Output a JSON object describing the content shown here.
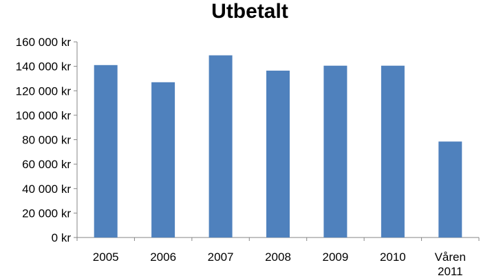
{
  "chart_data": {
    "type": "bar",
    "title": "Utbetalt",
    "categories": [
      "2005",
      "2006",
      "2007",
      "2008",
      "2009",
      "2010",
      "Våren 2011"
    ],
    "values": [
      141000,
      127000,
      149000,
      136500,
      140500,
      140500,
      78500
    ],
    "ylim": [
      0,
      160000
    ],
    "ytick_labels": [
      "0 kr",
      "20 000 kr",
      "40 000 kr",
      "60 000 kr",
      "80 000 kr",
      "100 000 kr",
      "120 000 kr",
      "140 000 kr",
      "160 000 kr"
    ],
    "grid": false,
    "legend": "none",
    "bar_color": "#4f81bd"
  }
}
